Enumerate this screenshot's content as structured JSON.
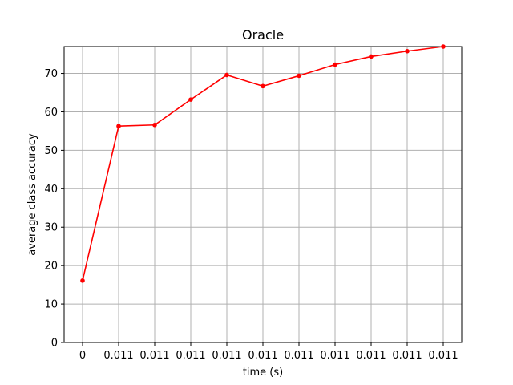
{
  "chart_data": {
    "type": "line",
    "title": "Oracle",
    "xlabel": "time (s)",
    "ylabel": "average class accuracy",
    "x_tick_labels": [
      "0",
      "0.011",
      "0.011",
      "0.011",
      "0.011",
      "0.011",
      "0.011",
      "0.011",
      "0.011",
      "0.011",
      "0.011"
    ],
    "y_ticks": [
      0,
      10,
      20,
      30,
      40,
      50,
      60,
      70
    ],
    "ylim": [
      0,
      77
    ],
    "grid": true,
    "series": [
      {
        "color": "#ff0000",
        "values": [
          16.1,
          56.3,
          56.6,
          63.2,
          69.6,
          66.7,
          69.4,
          72.3,
          74.4,
          75.8,
          77.0
        ]
      }
    ]
  }
}
